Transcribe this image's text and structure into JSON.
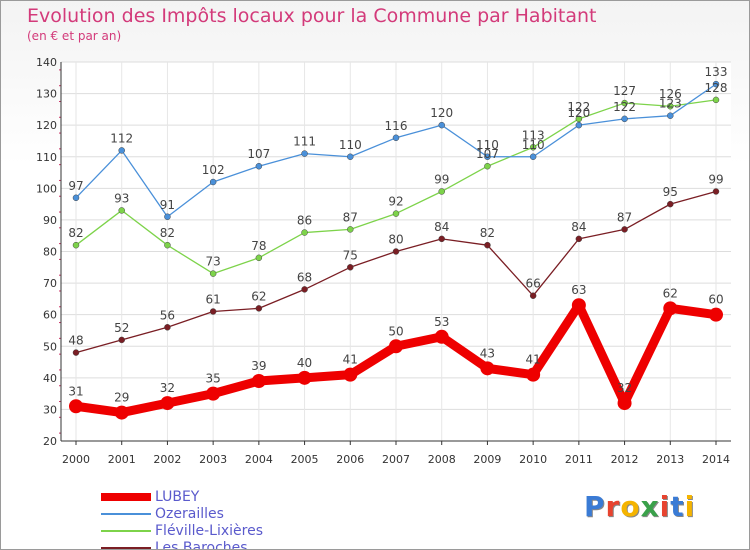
{
  "header": {
    "title": "Evolution des Impôts locaux pour la Commune par Habitant",
    "subtitle": "(en € et par an)"
  },
  "logo": {
    "text": "Proxiti",
    "colors": [
      "#3a7bd5",
      "#e8432f",
      "#f5b400",
      "#3aa14a",
      "#e8432f",
      "#3a7bd5",
      "#f5b400"
    ]
  },
  "chart_data": {
    "type": "line",
    "x": [
      2000,
      2001,
      2002,
      2003,
      2004,
      2005,
      2006,
      2007,
      2008,
      2009,
      2010,
      2011,
      2012,
      2013,
      2014
    ],
    "ylim": [
      20,
      140
    ],
    "yticks": [
      20,
      30,
      40,
      50,
      60,
      70,
      80,
      90,
      100,
      110,
      120,
      130,
      140
    ],
    "grid": true,
    "legend_position": "bottom-left",
    "series": [
      {
        "name": "LUBEY",
        "color": "#ee0000",
        "values": [
          31,
          29,
          32,
          35,
          39,
          40,
          41,
          50,
          53,
          43,
          41,
          63,
          32,
          62,
          60
        ]
      },
      {
        "name": "Ozerailles",
        "color": "#4a90d9",
        "values": [
          97,
          112,
          91,
          102,
          107,
          111,
          110,
          116,
          120,
          110,
          110,
          120,
          122,
          123,
          133
        ]
      },
      {
        "name": "Fléville-Lixières",
        "color": "#7dd34a",
        "values": [
          82,
          93,
          82,
          73,
          78,
          86,
          87,
          92,
          99,
          107,
          113,
          122,
          127,
          126,
          128
        ]
      },
      {
        "name": "Les Baroches",
        "color": "#7a1e24",
        "values": [
          48,
          52,
          56,
          61,
          62,
          68,
          75,
          80,
          84,
          82,
          66,
          84,
          87,
          95,
          99
        ]
      }
    ]
  }
}
